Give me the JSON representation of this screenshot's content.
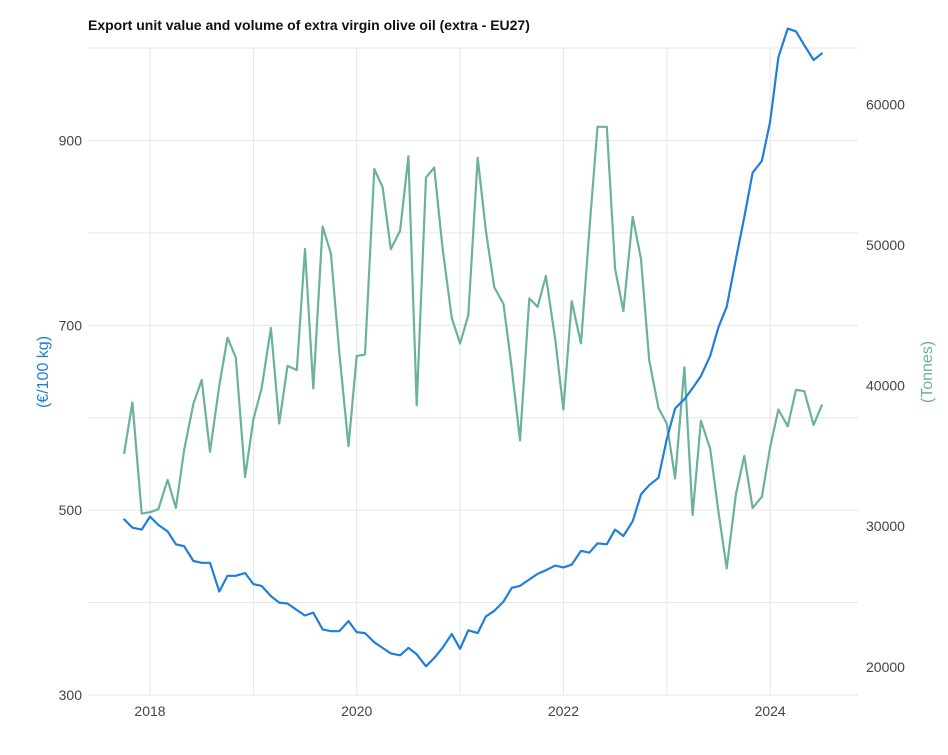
{
  "chart_data": {
    "type": "line",
    "title": "Export unit value and volume of extra virgin olive oil (extra - EU27)",
    "x_tick_labels": [
      "2018",
      "2020",
      "2022",
      "2024"
    ],
    "x_ticks": [
      2018,
      2020,
      2022,
      2024
    ],
    "xlim": [
      2017.4,
      2024.85
    ],
    "y_left": {
      "label": "(€/100 kg)",
      "ticks": [
        300,
        500,
        700,
        900
      ],
      "tick_labels": [
        "300",
        "500",
        "700",
        "900"
      ],
      "ylim": [
        300,
        1000
      ],
      "color": "#1f7fdb"
    },
    "y_right": {
      "label": "(Tonnes)",
      "ticks": [
        20000,
        30000,
        40000,
        50000,
        60000
      ],
      "tick_labels": [
        "20000",
        "30000",
        "40000",
        "50000",
        "60000"
      ],
      "ylim": [
        18000,
        64000
      ],
      "color": "#6ab1a0"
    },
    "grid": true,
    "legend": "none",
    "series": [
      {
        "axis": "left",
        "color": "#1f7fdb",
        "x": [
          2017.75,
          2017.83,
          2017.92,
          2018.0,
          2018.08,
          2018.17,
          2018.25,
          2018.33,
          2018.42,
          2018.5,
          2018.58,
          2018.67,
          2018.75,
          2018.83,
          2018.92,
          2019.0,
          2019.08,
          2019.17,
          2019.25,
          2019.33,
          2019.42,
          2019.5,
          2019.58,
          2019.67,
          2019.75,
          2019.83,
          2019.92,
          2020.0,
          2020.08,
          2020.17,
          2020.25,
          2020.33,
          2020.42,
          2020.5,
          2020.58,
          2020.67,
          2020.75,
          2020.83,
          2020.92,
          2021.0,
          2021.08,
          2021.17,
          2021.25,
          2021.33,
          2021.42,
          2021.5,
          2021.58,
          2021.67,
          2021.75,
          2021.83,
          2021.92,
          2022.0,
          2022.08,
          2022.17,
          2022.25,
          2022.33,
          2022.42,
          2022.5,
          2022.58,
          2022.67,
          2022.75,
          2022.83,
          2022.92,
          2023.0,
          2023.08,
          2023.17,
          2023.25,
          2023.33,
          2023.42,
          2023.5,
          2023.58,
          2023.67,
          2023.75,
          2023.83,
          2023.92,
          2024.0,
          2024.08,
          2024.17,
          2024.25,
          2024.33,
          2024.42,
          2024.5
        ],
        "values": [
          490,
          481,
          479,
          493,
          484,
          477,
          463,
          461,
          445,
          443,
          443,
          412,
          429,
          429,
          432,
          420,
          418,
          407,
          400,
          399,
          392,
          386,
          389,
          371,
          369,
          369,
          380,
          368,
          367,
          357,
          351,
          345,
          343,
          351,
          344,
          331,
          340,
          351,
          366,
          350,
          370,
          367,
          385,
          391,
          401,
          416,
          418,
          425,
          431,
          435,
          440,
          438,
          441,
          456,
          454,
          464,
          463,
          479,
          472,
          488,
          517,
          527,
          535,
          577,
          610,
          620,
          632,
          645,
          667,
          698,
          720,
          772,
          817,
          865,
          878,
          920,
          990,
          1021,
          1018,
          1003,
          987,
          994
        ]
      },
      {
        "axis": "right",
        "color": "#6ab1a0",
        "x": [
          2017.75,
          2017.83,
          2017.92,
          2018.0,
          2018.08,
          2018.17,
          2018.25,
          2018.33,
          2018.42,
          2018.5,
          2018.58,
          2018.67,
          2018.75,
          2018.83,
          2018.92,
          2019.0,
          2019.08,
          2019.17,
          2019.25,
          2019.33,
          2019.42,
          2019.5,
          2019.58,
          2019.67,
          2019.75,
          2019.83,
          2019.92,
          2020.0,
          2020.08,
          2020.17,
          2020.25,
          2020.33,
          2020.42,
          2020.5,
          2020.58,
          2020.67,
          2020.75,
          2020.83,
          2020.92,
          2021.0,
          2021.08,
          2021.17,
          2021.25,
          2021.33,
          2021.42,
          2021.5,
          2021.58,
          2021.67,
          2021.75,
          2021.83,
          2021.92,
          2022.0,
          2022.08,
          2022.17,
          2022.25,
          2022.33,
          2022.42,
          2022.5,
          2022.58,
          2022.67,
          2022.75,
          2022.83,
          2022.92,
          2023.0,
          2023.08,
          2023.17,
          2023.25,
          2023.33,
          2023.42,
          2023.5,
          2023.58,
          2023.67,
          2023.75,
          2023.83,
          2023.92,
          2024.0,
          2024.08,
          2024.17,
          2024.25,
          2024.33,
          2024.42,
          2024.5
        ],
        "values": [
          35200,
          38800,
          30900,
          31000,
          31200,
          33300,
          31300,
          35400,
          38700,
          40400,
          35300,
          40000,
          43400,
          42000,
          33500,
          37600,
          39800,
          44100,
          37300,
          41400,
          41100,
          49700,
          39800,
          51300,
          49400,
          42400,
          35700,
          42100,
          42200,
          55400,
          54100,
          49700,
          51000,
          56300,
          38600,
          54800,
          55500,
          49800,
          44800,
          43000,
          45000,
          56200,
          51000,
          47000,
          45800,
          41200,
          36100,
          46200,
          45600,
          47800,
          43300,
          38300,
          46000,
          43000,
          51000,
          58400,
          58400,
          48300,
          45300,
          52000,
          49000,
          41800,
          38400,
          37300,
          33400,
          41300,
          30800,
          37500,
          35500,
          31000,
          27000,
          32300,
          35000,
          31300,
          32100,
          35600,
          38300,
          37100,
          39700,
          39600,
          37200,
          38600
        ]
      }
    ]
  }
}
